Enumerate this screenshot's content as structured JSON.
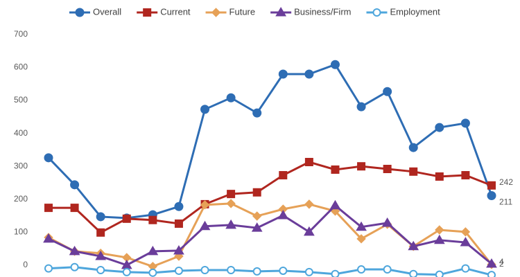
{
  "chart_data": {
    "type": "line",
    "categories": [
      null,
      null,
      null,
      null,
      null,
      null,
      null,
      null,
      null,
      null,
      null,
      null,
      null,
      null,
      null,
      null,
      null,
      null
    ],
    "series": [
      {
        "name": "Overall",
        "color": "#2e6db4",
        "marker": "circle",
        "values": [
          326,
          244,
          147,
          143,
          153,
          178,
          473,
          508,
          462,
          580,
          580,
          609,
          481,
          527,
          357,
          418,
          431,
          211
        ]
      },
      {
        "name": "Current",
        "color": "#b0261f",
        "marker": "square",
        "values": [
          174,
          174,
          99,
          141,
          137,
          126,
          185,
          216,
          221,
          273,
          313,
          290,
          300,
          292,
          284,
          269,
          273,
          242
        ]
      },
      {
        "name": "Future",
        "color": "#e6a157",
        "marker": "diamond",
        "values": [
          84,
          42,
          36,
          23,
          -4,
          27,
          183,
          187,
          149,
          170,
          185,
          164,
          80,
          124,
          57,
          107,
          101,
          2
        ]
      },
      {
        "name": "Business/Firm",
        "color": "#6a3d9a",
        "marker": "triangle",
        "values": [
          80,
          42,
          27,
          0,
          42,
          44,
          118,
          122,
          113,
          151,
          101,
          181,
          116,
          128,
          57,
          76,
          69,
          4
        ]
      },
      {
        "name": "Employment",
        "color": "#4ea6dc",
        "marker": "open-circle",
        "values": [
          -10,
          -6,
          -15,
          -21,
          -23,
          -17,
          -15,
          -15,
          -19,
          -17,
          -21,
          -27,
          -13,
          -13,
          -27,
          -29,
          -10,
          -30
        ]
      }
    ],
    "data_labels": "last",
    "ylim": [
      -36,
      805
    ],
    "yticks": [
      0,
      100,
      200,
      300,
      400,
      500,
      600,
      700
    ],
    "grid": false,
    "legend": "top"
  }
}
